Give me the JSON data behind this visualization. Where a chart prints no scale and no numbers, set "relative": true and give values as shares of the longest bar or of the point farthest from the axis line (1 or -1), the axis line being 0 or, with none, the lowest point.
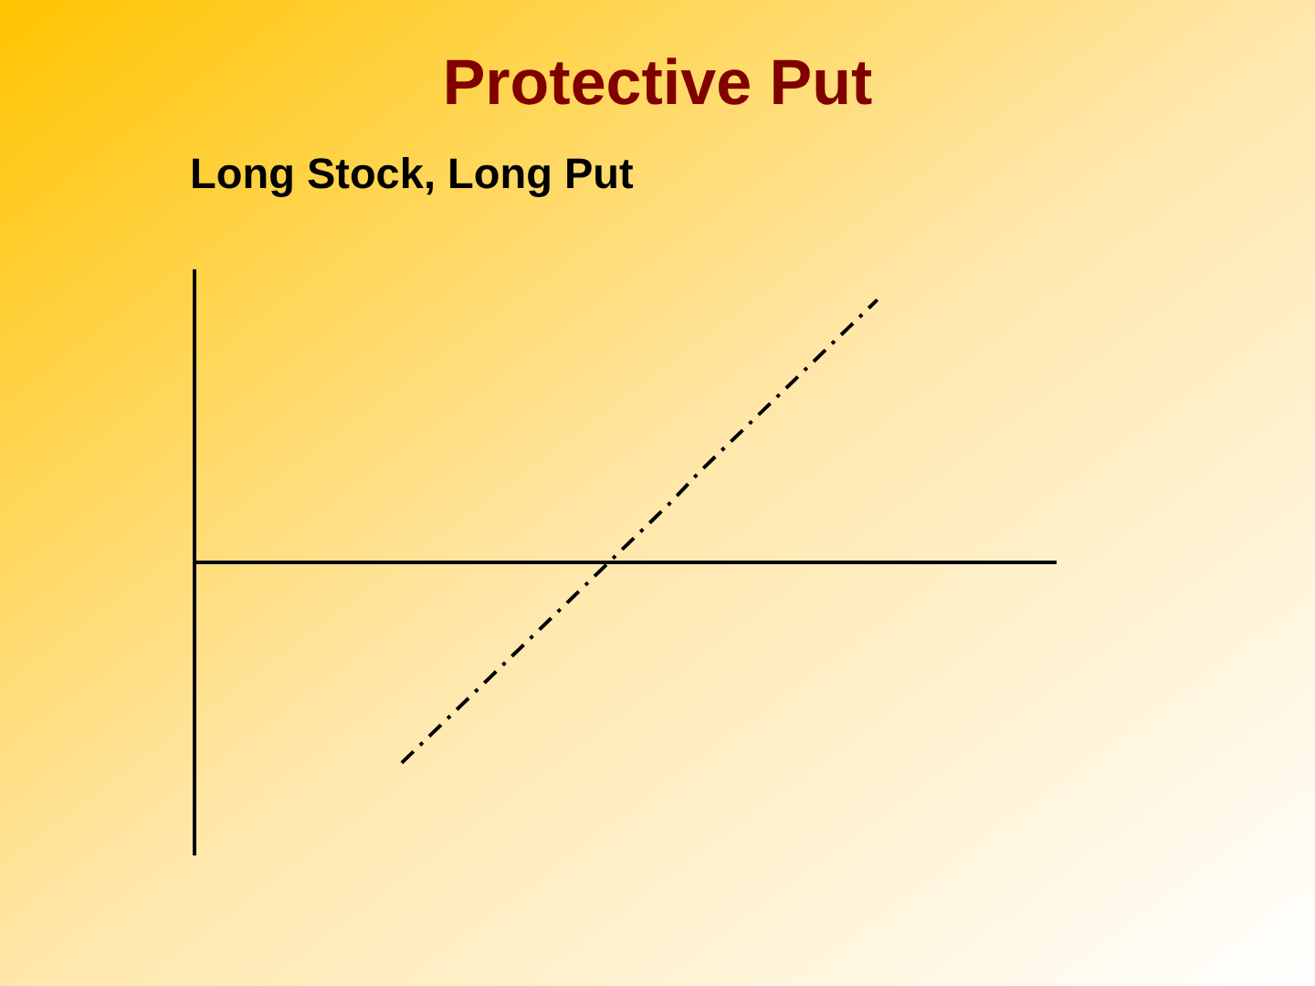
{
  "chart_data": {
    "type": "line",
    "title": "Protective Put",
    "subtitle": "Long Stock, Long Put",
    "relative": true,
    "categories": [
      null,
      null,
      null,
      null,
      null,
      null,
      null,
      null,
      null,
      null,
      null,
      null,
      null,
      null,
      null,
      null,
      null,
      null,
      null,
      null,
      null,
      null,
      null,
      null,
      null,
      null,
      null,
      null,
      null,
      null
    ],
    "series": [
      {
        "color": "#000000",
        "values": [
          null,
          null,
          null,
          null,
          null,
          null,
          null,
          -0.77,
          -0.66,
          -0.55,
          -0.44,
          -0.33,
          -0.22,
          -0.11,
          0,
          0.11,
          0.22,
          0.34,
          0.45,
          0.56,
          0.67,
          0.78,
          0.89,
          1,
          null,
          null,
          null,
          null,
          null,
          null
        ]
      }
    ],
    "line_style": "dashed"
  }
}
